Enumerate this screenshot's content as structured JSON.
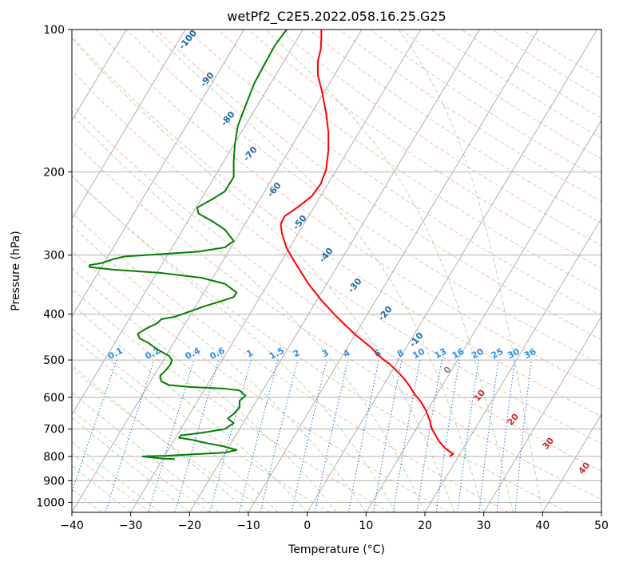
{
  "chart_data": {
    "type": "line",
    "title": "wetPf2_C2E5.2022.058.16.25.G25",
    "xlabel": "Temperature (°C)",
    "ylabel": "Pressure (hPa)",
    "xlim": [
      -40,
      50
    ],
    "ylim": [
      1050,
      100
    ],
    "y_scale": "log",
    "x_ticks": [
      "−40",
      "−30",
      "−20",
      "−10",
      "0",
      "10",
      "20",
      "30",
      "40",
      "50"
    ],
    "y_ticks": [
      "100",
      "200",
      "300",
      "400",
      "500",
      "600",
      "700",
      "800",
      "900",
      "1000"
    ],
    "grid": true,
    "series": [
      {
        "role": "temperature",
        "color": "#ff0000",
        "points": [
          [
            24.2,
            800
          ],
          [
            24.8,
            790
          ],
          [
            23.5,
            770
          ],
          [
            22.3,
            740
          ],
          [
            21.8,
            720
          ],
          [
            21.2,
            700
          ],
          [
            20.8,
            670
          ],
          [
            20.2,
            640
          ],
          [
            19.2,
            610
          ],
          [
            18.2,
            590
          ],
          [
            17.5,
            570
          ],
          [
            16.6,
            550
          ],
          [
            15.4,
            530
          ],
          [
            14.0,
            510
          ],
          [
            12.6,
            495
          ],
          [
            10.8,
            470
          ],
          [
            8.0,
            440
          ],
          [
            5.0,
            405
          ],
          [
            2.5,
            375
          ],
          [
            0.2,
            345
          ],
          [
            -1.8,
            315
          ],
          [
            -3.5,
            290
          ],
          [
            -4.3,
            270
          ],
          [
            -4.5,
            258
          ],
          [
            -3.8,
            248
          ],
          [
            -1.5,
            237
          ],
          [
            0.8,
            225
          ],
          [
            2.3,
            212
          ],
          [
            3.2,
            198
          ],
          [
            3.6,
            180
          ],
          [
            3.6,
            165
          ],
          [
            3.2,
            150
          ],
          [
            2.5,
            135
          ],
          [
            1.8,
            125
          ],
          [
            1.8,
            117
          ],
          [
            2.3,
            110
          ],
          [
            2.4,
            104
          ],
          [
            2.4,
            100
          ]
        ]
      },
      {
        "role": "dewpoint",
        "color": "#008000",
        "points": [
          [
            -22.5,
            810
          ],
          [
            -24.5,
            808
          ],
          [
            -28.0,
            800
          ],
          [
            -27.8,
            799
          ],
          [
            -24.0,
            797
          ],
          [
            -19.0,
            791
          ],
          [
            -14.0,
            785
          ],
          [
            -12.0,
            775
          ],
          [
            -14.5,
            760
          ],
          [
            -17.0,
            750
          ],
          [
            -19.5,
            738
          ],
          [
            -21.8,
            730
          ],
          [
            -21.5,
            722
          ],
          [
            -18.0,
            713
          ],
          [
            -14.0,
            700
          ],
          [
            -12.5,
            680
          ],
          [
            -13.5,
            665
          ],
          [
            -12.5,
            650
          ],
          [
            -11.5,
            630
          ],
          [
            -11.5,
            610
          ],
          [
            -10.5,
            595
          ],
          [
            -11.5,
            580
          ],
          [
            -14.0,
            575
          ],
          [
            -20.0,
            570
          ],
          [
            -23.5,
            565
          ],
          [
            -24.8,
            555
          ],
          [
            -25.0,
            540
          ],
          [
            -24.0,
            525
          ],
          [
            -23.2,
            510
          ],
          [
            -23.0,
            500
          ],
          [
            -23.5,
            490
          ],
          [
            -25.5,
            475
          ],
          [
            -27.0,
            460
          ],
          [
            -28.5,
            450
          ],
          [
            -28.8,
            440
          ],
          [
            -27.5,
            430
          ],
          [
            -25.5,
            418
          ],
          [
            -24.8,
            410
          ],
          [
            -22.5,
            405
          ],
          [
            -20.0,
            395
          ],
          [
            -17.5,
            385
          ],
          [
            -14.5,
            375
          ],
          [
            -12.5,
            368
          ],
          [
            -12.0,
            360
          ],
          [
            -14.0,
            345
          ],
          [
            -18.0,
            335
          ],
          [
            -25.0,
            327
          ],
          [
            -33.0,
            322
          ],
          [
            -37.0,
            318
          ],
          [
            -37.0,
            315
          ],
          [
            -35.0,
            312
          ],
          [
            -33.0,
            306
          ],
          [
            -31.0,
            302
          ],
          [
            -25.5,
            299
          ],
          [
            -18.5,
            295
          ],
          [
            -14.0,
            289
          ],
          [
            -12.5,
            280
          ],
          [
            -14.0,
            265
          ],
          [
            -16.0,
            255
          ],
          [
            -18.5,
            245
          ],
          [
            -18.7,
            238
          ],
          [
            -16.0,
            228
          ],
          [
            -14.0,
            220
          ],
          [
            -12.5,
            205
          ],
          [
            -12.5,
            190
          ],
          [
            -12.3,
            175
          ],
          [
            -11.8,
            160
          ],
          [
            -10.5,
            145
          ],
          [
            -9.0,
            130
          ],
          [
            -7.5,
            120
          ],
          [
            -5.5,
            108
          ],
          [
            -3.5,
            100
          ]
        ]
      }
    ],
    "dry_adiabat_labels": [
      "-100",
      "-90",
      "-80",
      "-70",
      "-60",
      "-50",
      "-40",
      "-30",
      "-20",
      "-10"
    ],
    "mixing_ratio_labels": [
      "0.1",
      "0.2",
      "0.4",
      "0.6",
      "1",
      "1.5",
      "2",
      "3",
      "4",
      "6",
      "8",
      "10",
      "13",
      "16",
      "20",
      "25",
      "30",
      "36"
    ],
    "moist_adiabat_labels": [
      "0",
      "10",
      "20",
      "30",
      "40"
    ],
    "colors": {
      "isotherm": "#b0b0b0",
      "isobar": "#b0b0b0",
      "dry_adiabat": "#f7a58c",
      "moist_adiabat": "#9fd29f",
      "mixing_ratio": "#2f7fd8",
      "dry_adiabat_label": "#1f6aa8",
      "mixing_ratio_label": "#2f8fe8",
      "moist_adiabat_label": "#d62828",
      "moist_zero_label": "#888888"
    }
  }
}
